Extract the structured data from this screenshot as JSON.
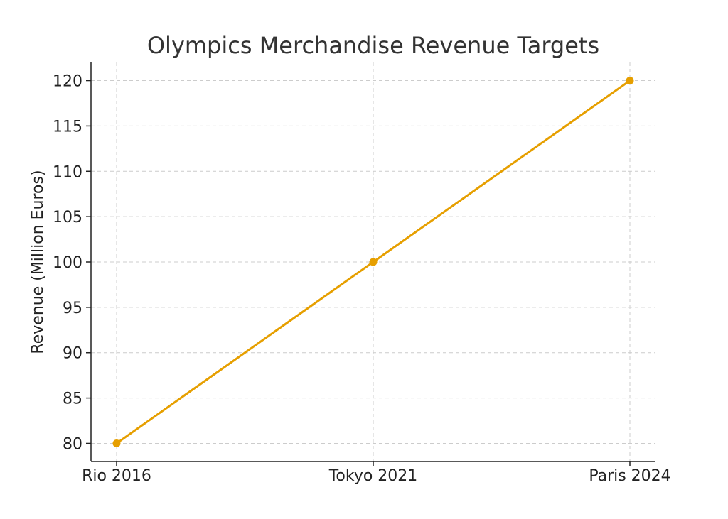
{
  "chart_data": {
    "type": "line",
    "title": "Olympics Merchandise Revenue Targets",
    "xlabel": "",
    "ylabel": "Revenue (Million Euros)",
    "categories": [
      "Rio 2016",
      "Tokyo 2021",
      "Paris 2024"
    ],
    "series": [
      {
        "values": [
          80,
          100,
          120
        ],
        "color": "#e69f00"
      }
    ],
    "ylim": [
      78,
      122
    ],
    "yticks": [
      80,
      85,
      90,
      95,
      100,
      105,
      110,
      115,
      120
    ],
    "grid": true,
    "legend": "none"
  }
}
